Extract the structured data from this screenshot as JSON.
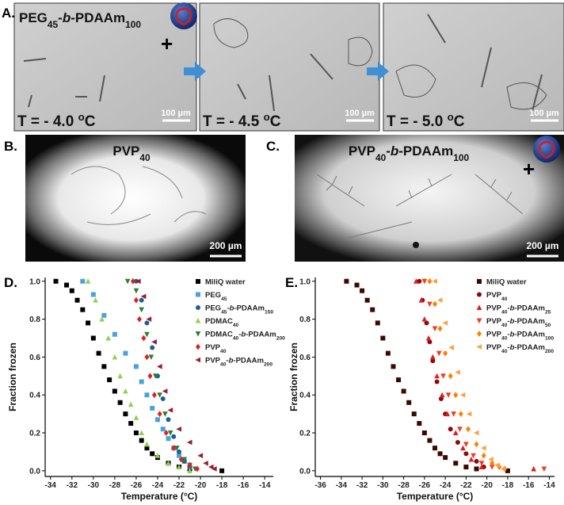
{
  "panel_a": {
    "label": "A.",
    "title": "PEG45-b-PDAAm100",
    "plus": "+",
    "images": [
      {
        "temperature": "T = - 4.0 oC",
        "scale": "100 µm"
      },
      {
        "temperature": "T = - 4.5 oC",
        "scale": "100 µm"
      },
      {
        "temperature": "T = - 5.0 oC",
        "scale": "100 µm"
      }
    ]
  },
  "panel_b": {
    "label": "B.",
    "title": "PVP40",
    "scale": "200 µm"
  },
  "panel_c": {
    "label": "C.",
    "title": "PVP40-b-PDAAm100",
    "plus": "+",
    "scale": "200 µm"
  },
  "chart_data": [
    {
      "type": "scatter",
      "label": "D.",
      "x_label": "Temperature (°C)",
      "y_label": "Fraction frozen",
      "xlim": [
        -34.5,
        -13.2
      ],
      "ylim": [
        -0.03,
        1.02
      ],
      "xticks": [
        -34,
        -32,
        -30,
        -28,
        -26,
        -24,
        -22,
        -20,
        -18,
        -16,
        -14
      ],
      "yticks": [
        {
          "value": 0,
          "label": "0.0"
        },
        {
          "value": 0.2,
          "label": "0.2"
        },
        {
          "value": 0.4,
          "label": "0.4"
        },
        {
          "value": 0.6,
          "label": "0.6"
        },
        {
          "value": 0.8,
          "label": "0.8"
        },
        {
          "value": 1,
          "label": "1.0"
        }
      ],
      "series": [
        {
          "name": "MiliQ water",
          "color": "#000000",
          "marker": "square",
          "x": [
            -33.5,
            -32.5,
            -32,
            -31.5,
            -31,
            -30.5,
            -30,
            -29.5,
            -29,
            -28.5,
            -28,
            -27.5,
            -27,
            -26.5,
            -26,
            -25.5,
            -25,
            -24.5,
            -24,
            -23,
            -22,
            -21,
            -18
          ],
          "values": [
            1,
            0.98,
            0.95,
            0.9,
            0.85,
            0.78,
            0.7,
            0.62,
            0.55,
            0.48,
            0.42,
            0.36,
            0.3,
            0.25,
            0.2,
            0.16,
            0.12,
            0.09,
            0.07,
            0.04,
            0.02,
            0.01,
            0
          ]
        },
        {
          "name": "PEG45",
          "color": "#4aa3d8",
          "marker": "square",
          "x": [
            -31,
            -30,
            -29,
            -28,
            -27,
            -26,
            -25.5,
            -25,
            -24.5,
            -24,
            -23.5,
            -23,
            -22.5,
            -22,
            -21.5,
            -21
          ],
          "values": [
            1,
            0.93,
            0.82,
            0.72,
            0.62,
            0.55,
            0.47,
            0.4,
            0.33,
            0.27,
            0.22,
            0.17,
            0.12,
            0.08,
            0.05,
            0.02
          ]
        },
        {
          "name": "PEG45-b-PDAAm150",
          "color": "#1f5f8b",
          "marker": "circle",
          "x": [
            -26,
            -25.5,
            -25,
            -24.5,
            -24,
            -23.5,
            -23,
            -22.5,
            -22,
            -21.5,
            -21
          ],
          "values": [
            1,
            0.9,
            0.78,
            0.65,
            0.5,
            0.38,
            0.27,
            0.18,
            0.1,
            0.05,
            0.02
          ]
        },
        {
          "name": "PDMAC40",
          "color": "#8fd14f",
          "marker": "up",
          "x": [
            -30.5,
            -29.8,
            -29.2,
            -28.6,
            -28,
            -27.5,
            -27,
            -26.5,
            -26,
            -25.5,
            -25,
            -24,
            -23,
            -22,
            -21
          ],
          "values": [
            1,
            0.9,
            0.8,
            0.7,
            0.6,
            0.5,
            0.42,
            0.35,
            0.28,
            0.2,
            0.14,
            0.08,
            0.04,
            0.02,
            0
          ]
        },
        {
          "name": "PDMAC40-b-PDAAm200",
          "color": "#2e7d32",
          "marker": "down",
          "x": [
            -26.8,
            -26,
            -25.5,
            -25,
            -24.6,
            -24.2,
            -23.8,
            -23.3,
            -22.8,
            -22.2,
            -21.5,
            -21,
            -20.5
          ],
          "values": [
            1,
            0.95,
            0.85,
            0.72,
            0.6,
            0.5,
            0.4,
            0.3,
            0.2,
            0.12,
            0.06,
            0.03,
            0.01
          ]
        },
        {
          "name": "PVP40",
          "color": "#e02020",
          "marker": "diamond",
          "x": [
            -26.3,
            -26,
            -25.7,
            -25.3,
            -25,
            -24.7,
            -24.3,
            -23.8,
            -23.2,
            -22.5,
            -21.8,
            -21,
            -20.3
          ],
          "values": [
            1,
            0.9,
            0.8,
            0.7,
            0.6,
            0.5,
            0.4,
            0.3,
            0.2,
            0.12,
            0.06,
            0.03,
            0.01
          ]
        },
        {
          "name": "PVP40-b-PDAAm200",
          "color": "#9b1b30",
          "marker": "left",
          "x": [
            -25.8,
            -25.3,
            -24.8,
            -24.3,
            -23.8,
            -23.3,
            -22.8,
            -22,
            -21,
            -20,
            -19.5,
            -19,
            -18.7
          ],
          "values": [
            1,
            0.92,
            0.8,
            0.68,
            0.55,
            0.42,
            0.32,
            0.22,
            0.15,
            0.08,
            0.04,
            0.02,
            0.01
          ]
        }
      ]
    },
    {
      "type": "scatter",
      "label": "E.",
      "x_label": "Temperature (°C)",
      "y_label": "Fraction frozen",
      "xlim": [
        -36.5,
        -13.5
      ],
      "ylim": [
        -0.03,
        1.02
      ],
      "xticks": [
        -36,
        -34,
        -32,
        -30,
        -28,
        -26,
        -24,
        -22,
        -20,
        -18,
        -16,
        -14
      ],
      "yticks": [
        {
          "value": 0,
          "label": "0.0"
        },
        {
          "value": 0.2,
          "label": "0.2"
        },
        {
          "value": 0.4,
          "label": "0.4"
        },
        {
          "value": 0.6,
          "label": "0.6"
        },
        {
          "value": 0.8,
          "label": "0.8"
        },
        {
          "value": 1,
          "label": "1.0"
        }
      ],
      "series": [
        {
          "name": "MiliQ water",
          "color": "#3a0a00",
          "marker": "square",
          "x": [
            -33.5,
            -32.5,
            -32,
            -31.5,
            -31,
            -30.5,
            -30,
            -29.5,
            -29,
            -28.5,
            -28,
            -27.5,
            -27,
            -26.5,
            -26,
            -25.5,
            -25,
            -24.5,
            -24,
            -23,
            -22,
            -21,
            -18
          ],
          "values": [
            1,
            0.98,
            0.95,
            0.9,
            0.85,
            0.78,
            0.7,
            0.62,
            0.55,
            0.48,
            0.42,
            0.36,
            0.3,
            0.25,
            0.2,
            0.16,
            0.12,
            0.09,
            0.07,
            0.04,
            0.02,
            0.01,
            0
          ]
        },
        {
          "name": "PVP40",
          "color": "#8b0a0a",
          "marker": "circle",
          "x": [
            -26.5,
            -26.2,
            -25.8,
            -25.5,
            -25.2,
            -24.8,
            -24.4,
            -24,
            -23.5,
            -22.8,
            -22,
            -21,
            -20.3
          ],
          "values": [
            1,
            0.9,
            0.78,
            0.68,
            0.58,
            0.47,
            0.38,
            0.3,
            0.22,
            0.15,
            0.09,
            0.05,
            0.02
          ]
        },
        {
          "name": "PVP40-b-PDAAm25",
          "color": "#e31a1c",
          "marker": "up",
          "x": [
            -26.8,
            -26.3,
            -26,
            -25.6,
            -25.2,
            -24.8,
            -24.3,
            -23.8,
            -23,
            -22.3,
            -21.5,
            -20.5,
            -15.5
          ],
          "values": [
            1,
            0.9,
            0.8,
            0.7,
            0.6,
            0.5,
            0.4,
            0.3,
            0.2,
            0.12,
            0.06,
            0.02,
            0.01
          ]
        },
        {
          "name": "PVP40-b-PDAAm50",
          "color": "#f03b20",
          "marker": "down",
          "x": [
            -26,
            -25.5,
            -25,
            -24.6,
            -24.2,
            -23.7,
            -23.2,
            -22.6,
            -22,
            -21.3,
            -20.5,
            -19.5,
            -14.5
          ],
          "values": [
            1,
            0.88,
            0.75,
            0.62,
            0.5,
            0.4,
            0.3,
            0.22,
            0.14,
            0.08,
            0.04,
            0.02,
            0.01
          ]
        },
        {
          "name": "PVP40-b-PDAAm100",
          "color": "#ff7f00",
          "marker": "diamond",
          "x": [
            -25.5,
            -25,
            -24.5,
            -24,
            -23.5,
            -23,
            -22.5,
            -21.8,
            -21,
            -20.3,
            -19.5,
            -18.8,
            -18.3
          ],
          "values": [
            1,
            0.88,
            0.75,
            0.62,
            0.5,
            0.4,
            0.3,
            0.22,
            0.14,
            0.08,
            0.04,
            0.02,
            0.01
          ]
        },
        {
          "name": "PVP40-b-PDAAm200",
          "color": "#ffa040",
          "marker": "left",
          "x": [
            -25,
            -24.5,
            -24,
            -23.4,
            -22.8,
            -22.3,
            -21.7,
            -21,
            -20.3,
            -19.6,
            -19,
            -18.4
          ],
          "values": [
            1,
            0.9,
            0.78,
            0.65,
            0.52,
            0.4,
            0.3,
            0.2,
            0.12,
            0.06,
            0.03,
            0.01
          ]
        }
      ]
    }
  ]
}
